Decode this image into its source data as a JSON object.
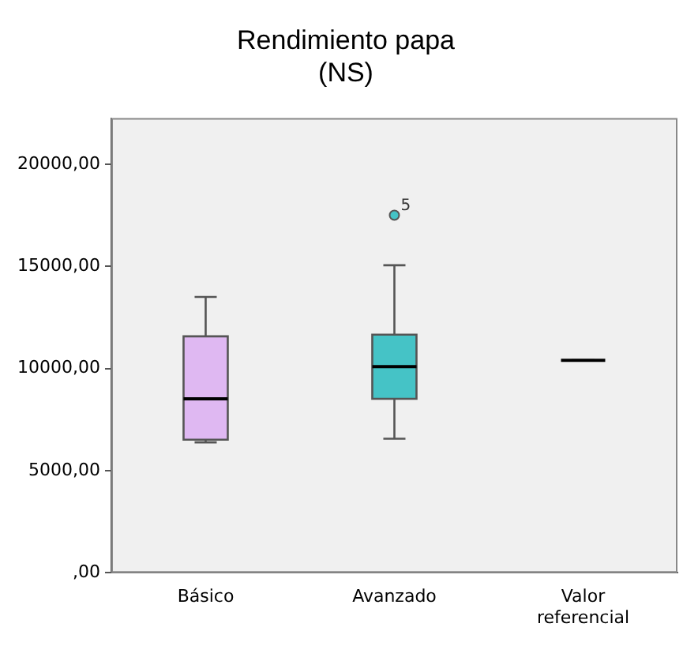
{
  "chart_data": {
    "type": "box",
    "title": "Rendimiento papa\n(NS)",
    "categories": [
      "Básico",
      "Avanzado",
      "Valor referencial"
    ],
    "colors": [
      "#dfb8f2",
      "#45c3c6",
      "#000000"
    ],
    "boxes": [
      {
        "low": 6380,
        "q1": 6510,
        "median": 8510,
        "q3": 11570,
        "high": 13500
      },
      {
        "low": 6560,
        "q1": 8510,
        "median": 10090,
        "q3": 11650,
        "high": 15050,
        "outliers": [
          17500
        ]
      },
      {
        "low": 10400,
        "q1": 10400,
        "median": 10400,
        "q3": 10400,
        "high": 10400
      }
    ],
    "annotations": [
      "5"
    ],
    "ylim": [
      0,
      22250
    ],
    "yticks": [
      {
        "value": 0,
        "label": ",00"
      },
      {
        "value": 5000,
        "label": "5000,00"
      },
      {
        "value": 10000,
        "label": "10000,00"
      },
      {
        "value": 15000,
        "label": "15000,00"
      },
      {
        "value": 20000,
        "label": "20000,00"
      }
    ],
    "grid": false
  }
}
